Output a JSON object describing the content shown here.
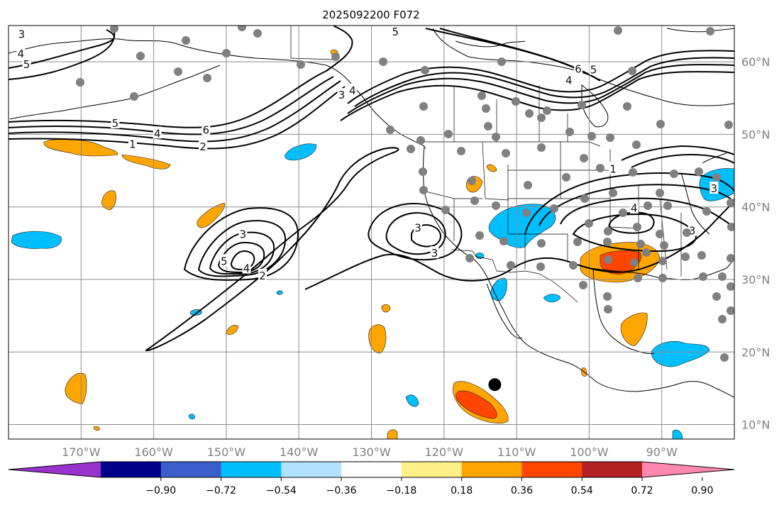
{
  "title": "2025092200 F072",
  "map": {
    "lon_range": [
      -180,
      -80
    ],
    "lat_range": [
      8,
      65
    ],
    "lon_ticks": [
      {
        "lon": -170,
        "label": "170°W"
      },
      {
        "lon": -160,
        "label": "160°W"
      },
      {
        "lon": -150,
        "label": "150°W"
      },
      {
        "lon": -140,
        "label": "140°W"
      },
      {
        "lon": -130,
        "label": "130°W"
      },
      {
        "lon": -120,
        "label": "120°W"
      },
      {
        "lon": -110,
        "label": "110°W"
      },
      {
        "lon": -100,
        "label": "100°W"
      },
      {
        "lon": -90,
        "label": "90°W"
      }
    ],
    "lat_ticks": [
      {
        "lat": 60,
        "label": "60°N"
      },
      {
        "lat": 50,
        "label": "50°N"
      },
      {
        "lat": 40,
        "label": "40°N"
      },
      {
        "lat": 30,
        "label": "30°N"
      },
      {
        "lat": 20,
        "label": "20°N"
      },
      {
        "lat": 10,
        "label": "10°N"
      }
    ],
    "grid": true,
    "storm_marker": {
      "lon": -113,
      "lat": 15.5
    },
    "contour_labels": [
      {
        "text": "3",
        "lon": -178.2,
        "lat": 63.9
      },
      {
        "text": "4",
        "lon": -178.3,
        "lat": 61.2
      },
      {
        "text": "5",
        "lon": -177.5,
        "lat": 59.7
      },
      {
        "text": "5",
        "lon": -165.3,
        "lat": 51.6
      },
      {
        "text": "4",
        "lon": -159.5,
        "lat": 50.2
      },
      {
        "text": "6",
        "lon": -152.8,
        "lat": 50.7
      },
      {
        "text": "1",
        "lon": -162.9,
        "lat": 48.7
      },
      {
        "text": "2",
        "lon": -153.2,
        "lat": 48.4
      },
      {
        "text": "5",
        "lon": -126.7,
        "lat": 64.2
      },
      {
        "text": "3",
        "lon": -134.1,
        "lat": 55.5
      },
      {
        "text": "4",
        "lon": -132.6,
        "lat": 56.1
      },
      {
        "text": "6",
        "lon": -101.5,
        "lat": 59.1
      },
      {
        "text": "5",
        "lon": -99.4,
        "lat": 59.0
      },
      {
        "text": "4",
        "lon": -102.8,
        "lat": 57.5
      },
      {
        "text": "3",
        "lon": -147.7,
        "lat": 36.3
      },
      {
        "text": "5",
        "lon": -150.3,
        "lat": 32.6
      },
      {
        "text": "4",
        "lon": -147.2,
        "lat": 31.6
      },
      {
        "text": "2",
        "lon": -145.0,
        "lat": 30.6
      },
      {
        "text": "3",
        "lon": -123.6,
        "lat": 37.2
      },
      {
        "text": "3",
        "lon": -121.3,
        "lat": 33.7
      },
      {
        "text": "4",
        "lon": -93.8,
        "lat": 39.9
      },
      {
        "text": "3",
        "lon": -85.8,
        "lat": 36.8
      },
      {
        "text": "1",
        "lon": -96.7,
        "lat": 45.3
      },
      {
        "text": "3",
        "lon": -82.8,
        "lat": 42.6
      }
    ]
  },
  "colorbar": {
    "colors": [
      "#9932cc",
      "#00008b",
      "#3a5fcd",
      "#00bfff",
      "#b0e2ff",
      "#ffffff",
      "#fff08a",
      "#ffa500",
      "#ff4500",
      "#b22222",
      "#ff88b0"
    ],
    "tick_labels": [
      "−0.90",
      "−0.72",
      "−0.54",
      "−0.36",
      "−0.18",
      "0.18",
      "0.36",
      "0.54",
      "0.72",
      "0.90"
    ]
  }
}
